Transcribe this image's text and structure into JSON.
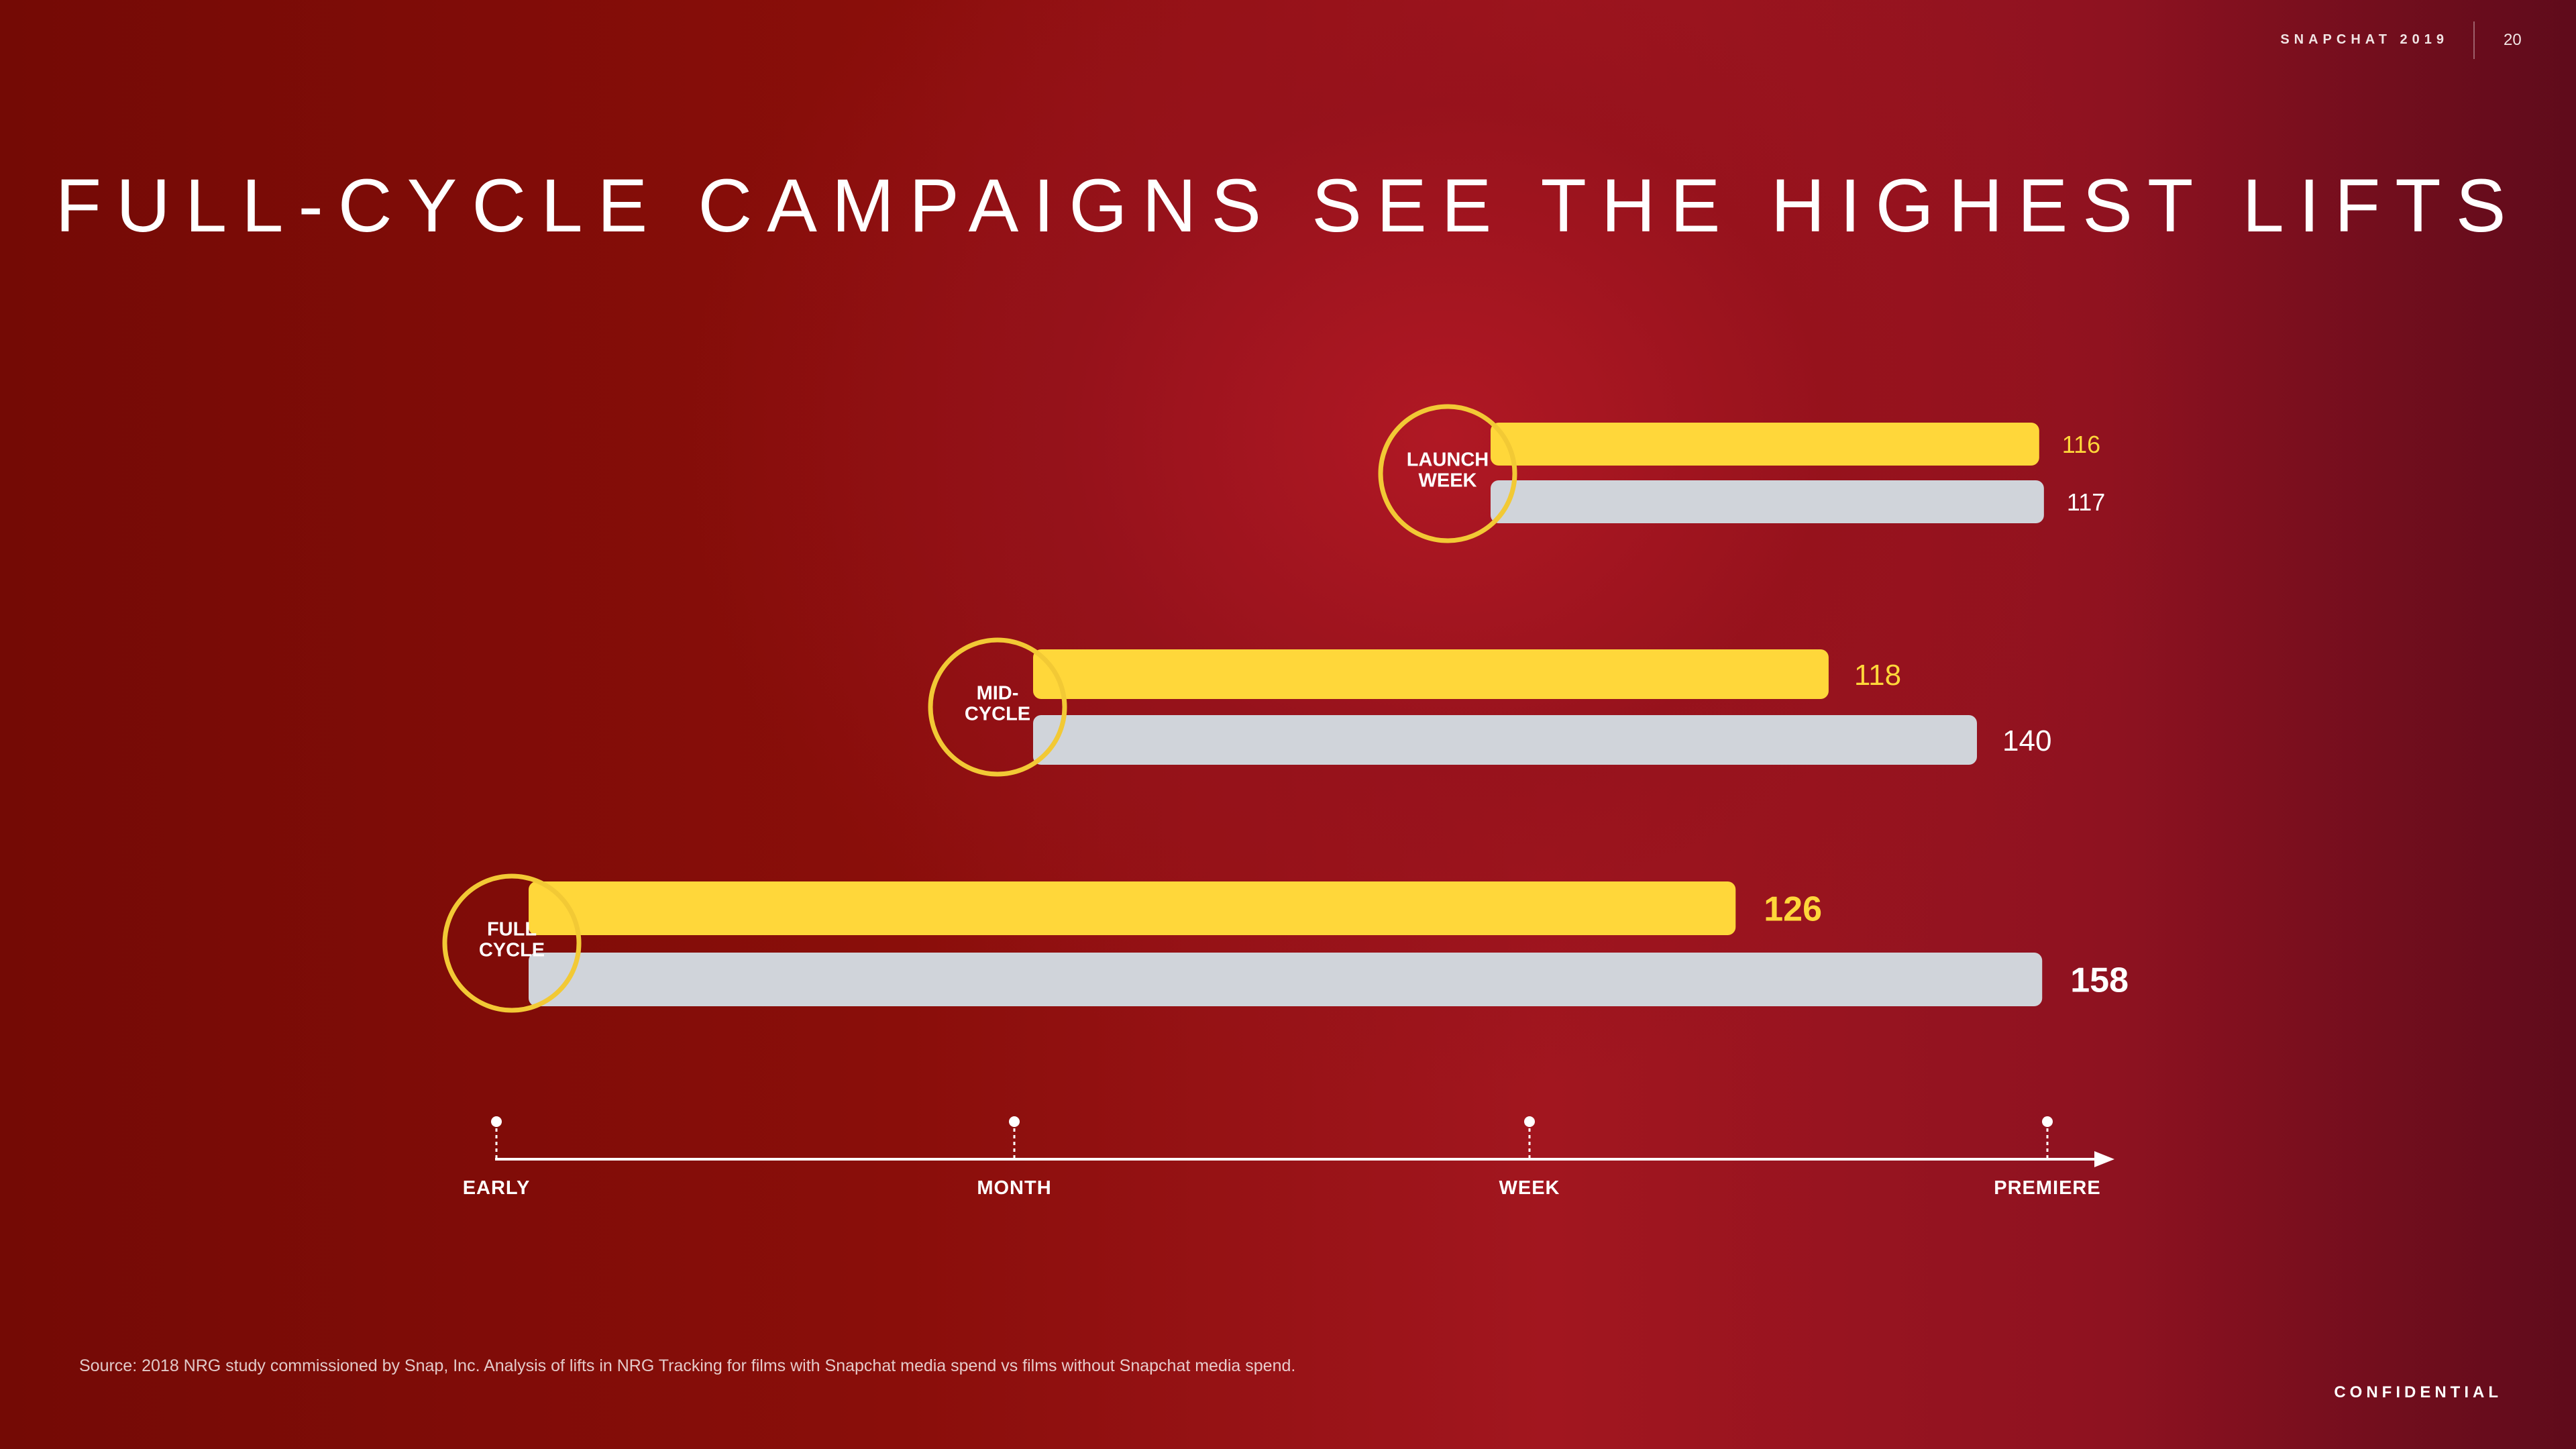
{
  "header": {
    "brand": "SNAPCHAT 2019",
    "page_number": "20"
  },
  "title": "FULL-CYCLE CAMPAIGNS SEE THE HIGHEST LIFTS",
  "colors": {
    "snap_bar": "#ffd73a",
    "no_snap_bar": "#d0d4da",
    "circle": "#f2c935",
    "axis": "#ffffff"
  },
  "chart_data": {
    "type": "bar",
    "orientation": "horizontal",
    "timeline": [
      "EARLY",
      "MONTH",
      "WEEK",
      "PREMIERE"
    ],
    "groups": [
      {
        "label_lines": [
          "LAUNCH",
          "WEEK"
        ],
        "start": "WEEK",
        "values": [
          116,
          117
        ]
      },
      {
        "label_lines": [
          "MID-",
          "CYCLE"
        ],
        "start": "MONTH",
        "values": [
          118,
          140
        ]
      },
      {
        "label_lines": [
          "FULL",
          "CYCLE"
        ],
        "start": "EARLY",
        "values": [
          126,
          158
        ]
      }
    ]
  },
  "footnote": "Source: 2018 NRG study commissioned by Snap, Inc. Analysis of lifts in NRG Tracking for films with Snapchat media spend vs films without Snapchat media spend.",
  "footer": {
    "confidential": "CONFIDENTIAL"
  }
}
